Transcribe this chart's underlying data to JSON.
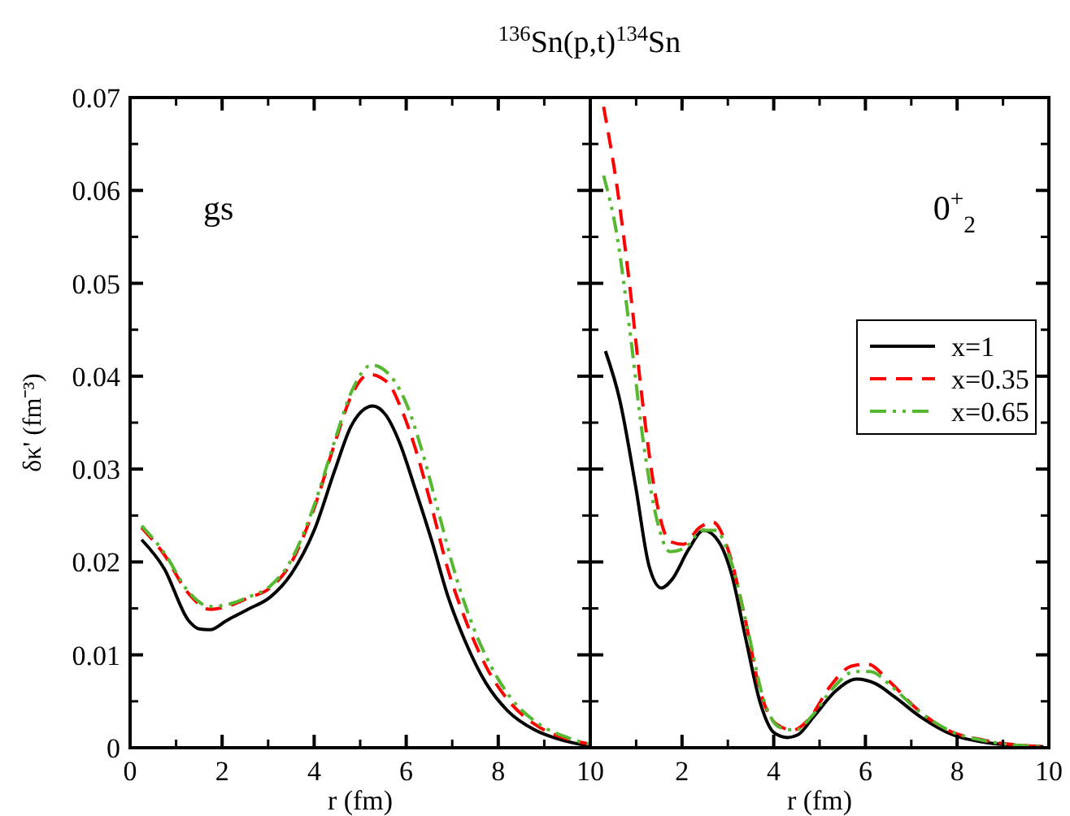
{
  "chart_data": [
    {
      "type": "line",
      "title": "$^{136}$Sn(p,t)$^{134}$Sn",
      "xlabel": "r (fm)",
      "ylabel": "δκ' (fm⁻³)",
      "annotations": [
        "gs"
      ],
      "xlim": [
        0,
        10
      ],
      "xticks": [
        0,
        2,
        4,
        6,
        8,
        10
      ],
      "ylim": [
        0,
        0.07
      ],
      "yticks": [
        0,
        0.01,
        0.02,
        0.03,
        0.04,
        0.05,
        0.06,
        0.07
      ],
      "legend": false,
      "series": [
        {
          "color": "#000000",
          "line_style": "solid",
          "x": [
            0.25,
            0.74,
            1.27,
            1.5,
            1.74,
            2.1,
            2.56,
            3.04,
            3.5,
            4,
            4.45,
            4.8,
            5.1,
            5.27,
            5.56,
            5.86,
            6.2,
            6.56,
            6.9,
            7.27,
            7.74,
            8.2,
            8.8,
            9.4,
            9.97
          ],
          "values": [
            0.0224,
            0.0193,
            0.0137,
            0.0128,
            0.0127,
            0.0137,
            0.0149,
            0.0162,
            0.0187,
            0.0234,
            0.0299,
            0.0346,
            0.0365,
            0.0368,
            0.0358,
            0.0328,
            0.0278,
            0.0222,
            0.0164,
            0.0116,
            0.0069,
            0.004,
            0.0019,
            0.0008,
            0.0002
          ]
        },
        {
          "color": "#ff0000",
          "line_style": "dashed",
          "x": [
            0.25,
            0.74,
            1.27,
            1.74,
            2.1,
            2.56,
            3.04,
            3.5,
            4,
            4.45,
            4.8,
            5.2,
            5.6,
            5.9,
            6.2,
            6.56,
            6.9,
            7.27,
            7.74,
            8.2,
            8.8,
            9.4,
            9.97
          ],
          "values": [
            0.0237,
            0.0208,
            0.0166,
            0.0149,
            0.0152,
            0.0161,
            0.0172,
            0.0199,
            0.0258,
            0.0328,
            0.0378,
            0.0402,
            0.0393,
            0.0364,
            0.0322,
            0.0258,
            0.0193,
            0.014,
            0.0087,
            0.0052,
            0.0025,
            0.0011,
            0.0004
          ]
        },
        {
          "color": "#55b830",
          "line_style": "dashdot",
          "x": [
            0.25,
            0.74,
            1.27,
            1.74,
            2.1,
            2.56,
            3.04,
            3.5,
            4,
            4.45,
            4.8,
            5.25,
            5.68,
            6.04,
            6.33,
            6.68,
            7.03,
            7.38,
            7.85,
            8.3,
            8.9,
            9.5,
            9.97
          ],
          "values": [
            0.0239,
            0.021,
            0.0168,
            0.0152,
            0.0154,
            0.0162,
            0.0174,
            0.0202,
            0.0261,
            0.0331,
            0.0382,
            0.0412,
            0.0399,
            0.0366,
            0.0322,
            0.0258,
            0.0193,
            0.014,
            0.0087,
            0.0052,
            0.0025,
            0.0011,
            0.0004
          ]
        }
      ]
    },
    {
      "type": "line",
      "xlabel": "r (fm)",
      "annotations": [
        "0$^{+}$$_{2}$"
      ],
      "xlim": [
        0,
        10
      ],
      "xticks": [
        2,
        4,
        6,
        8,
        10
      ],
      "ylim": [
        0,
        0.07
      ],
      "yticks": [
        0,
        0.01,
        0.02,
        0.03,
        0.04,
        0.05,
        0.06,
        0.07
      ],
      "tick_labels": "x",
      "legend": "right",
      "series": [
        {
          "name": "x=1",
          "color": "#000000",
          "line_style": "solid",
          "x": [
            0.33,
            0.64,
            0.99,
            1.28,
            1.55,
            1.78,
            2.15,
            2.47,
            2.8,
            3.08,
            3.37,
            3.72,
            4.01,
            4.3,
            4.53,
            4.88,
            5.35,
            5.81,
            6.22,
            6.63,
            7.21,
            7.9,
            8.72,
            9.88
          ],
          "values": [
            0.0427,
            0.0375,
            0.0281,
            0.0196,
            0.0172,
            0.0181,
            0.0214,
            0.0234,
            0.0222,
            0.0187,
            0.0122,
            0.0046,
            0.0016,
            0.0011,
            0.0014,
            0.0034,
            0.0061,
            0.0074,
            0.0069,
            0.0055,
            0.0033,
            0.0014,
            0.0005,
            0.0001
          ]
        },
        {
          "name": "x=0.35",
          "color": "#ff0000",
          "line_style": "dashed",
          "x": [
            0.29,
            0.58,
            0.87,
            1.16,
            1.45,
            1.74,
            2.03,
            2.38,
            2.67,
            3.02,
            3.37,
            3.72,
            4.07,
            4.42,
            4.77,
            5.23,
            5.7,
            6.05,
            6.51,
            7.09,
            7.79,
            8.6,
            9.88
          ],
          "values": [
            0.069,
            0.0605,
            0.0493,
            0.0364,
            0.0264,
            0.0222,
            0.0219,
            0.0237,
            0.0243,
            0.0211,
            0.014,
            0.0058,
            0.0025,
            0.0019,
            0.0031,
            0.0066,
            0.0088,
            0.009,
            0.0072,
            0.0043,
            0.0019,
            0.0008,
            0.0001
          ]
        },
        {
          "name": "x=0.65",
          "color": "#55b830",
          "line_style": "dashdot",
          "x": [
            0.29,
            0.58,
            0.87,
            1.16,
            1.45,
            1.74,
            2.09,
            2.44,
            2.73,
            3.08,
            3.43,
            3.78,
            4.13,
            4.48,
            4.83,
            5.29,
            5.76,
            6.1,
            6.57,
            7.15,
            7.85,
            8.66,
            9.88
          ],
          "values": [
            0.0616,
            0.0552,
            0.0446,
            0.0328,
            0.0246,
            0.0211,
            0.0216,
            0.0234,
            0.0234,
            0.0199,
            0.0128,
            0.0052,
            0.0022,
            0.0019,
            0.0034,
            0.0064,
            0.0082,
            0.0082,
            0.0066,
            0.004,
            0.0018,
            0.0007,
            0.0001
          ]
        }
      ]
    }
  ]
}
